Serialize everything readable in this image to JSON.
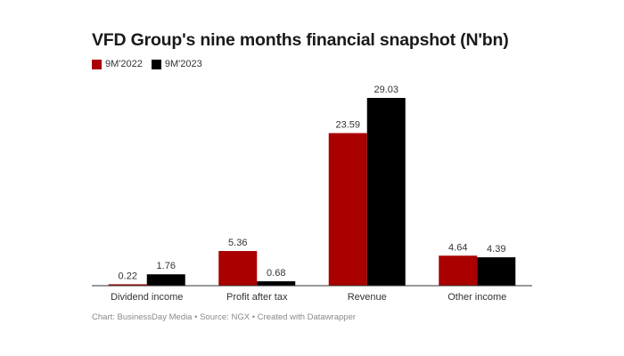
{
  "chart_data": {
    "type": "bar",
    "title": "VFD Group's nine months financial snapshot (N'bn)",
    "categories": [
      "Dividend income",
      "Profit after tax",
      "Revenue",
      "Other income"
    ],
    "series": [
      {
        "name": "9M'2022",
        "color": "#aa0000",
        "values": [
          0.22,
          5.36,
          23.59,
          4.64
        ],
        "labels": [
          "0.22",
          "5.36",
          "23.59",
          "4.64"
        ]
      },
      {
        "name": "9M'2023",
        "color": "#000000",
        "values": [
          1.76,
          0.68,
          29.03,
          4.39
        ],
        "labels": [
          "1.76",
          "0.68",
          "29.03",
          "4.39"
        ]
      }
    ],
    "ylim": [
      0,
      29.03
    ],
    "xlabel": "",
    "ylabel": "",
    "grid": false,
    "legend": "top-left"
  },
  "footer": {
    "chart_credit": "Chart: BusinessDay Media",
    "source": "Source: NGX",
    "tool": "Created with Datawrapper",
    "separator": "•"
  }
}
